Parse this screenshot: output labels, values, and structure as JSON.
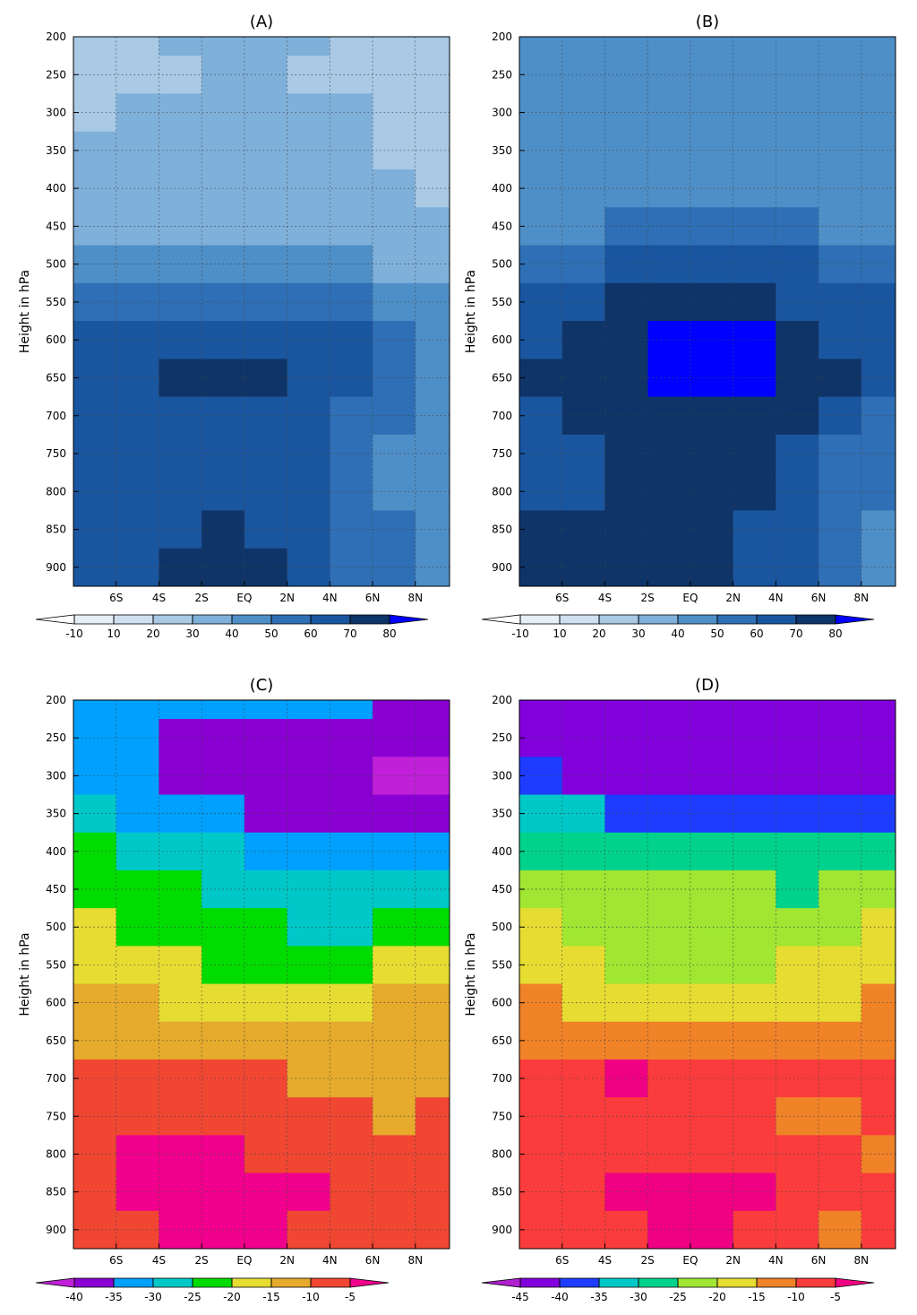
{
  "chart_data": [
    {
      "type": "contour",
      "title": "(A)",
      "ylabel": "Height in hPa",
      "x": [
        -7,
        -5,
        -3,
        -1,
        1,
        3,
        5,
        7,
        9
      ],
      "y": [
        200,
        250,
        300,
        350,
        400,
        450,
        500,
        550,
        600,
        650,
        700,
        750,
        800,
        850,
        900
      ],
      "z": [
        [
          25,
          25,
          35,
          35,
          35,
          35,
          25,
          25,
          25
        ],
        [
          25,
          25,
          28,
          35,
          35,
          28,
          25,
          25,
          25
        ],
        [
          28,
          32,
          35,
          35,
          35,
          35,
          32,
          25,
          25
        ],
        [
          32,
          35,
          35,
          35,
          35,
          35,
          35,
          28,
          25
        ],
        [
          35,
          35,
          35,
          35,
          35,
          35,
          35,
          32,
          28
        ],
        [
          38,
          38,
          38,
          38,
          38,
          38,
          38,
          35,
          35
        ],
        [
          45,
          45,
          42,
          42,
          42,
          42,
          42,
          38,
          38
        ],
        [
          55,
          52,
          52,
          52,
          55,
          52,
          52,
          45,
          42
        ],
        [
          62,
          62,
          65,
          68,
          65,
          62,
          62,
          55,
          48
        ],
        [
          62,
          65,
          72,
          75,
          72,
          62,
          62,
          55,
          48
        ],
        [
          62,
          62,
          65,
          68,
          62,
          62,
          58,
          52,
          48
        ],
        [
          62,
          62,
          62,
          62,
          62,
          62,
          55,
          48,
          45
        ],
        [
          62,
          62,
          62,
          62,
          62,
          62,
          55,
          48,
          42
        ],
        [
          62,
          62,
          68,
          72,
          68,
          62,
          58,
          52,
          42
        ],
        [
          62,
          62,
          72,
          75,
          70,
          62,
          58,
          52,
          42
        ]
      ],
      "xlim": [
        -8,
        9.6
      ],
      "ylim": [
        925,
        200
      ],
      "xticks": [
        {
          "value": -6,
          "label": "6S"
        },
        {
          "value": -4,
          "label": "4S"
        },
        {
          "value": -2,
          "label": "2S"
        },
        {
          "value": 0,
          "label": "EQ"
        },
        {
          "value": 2,
          "label": "2N"
        },
        {
          "value": 4,
          "label": "4N"
        },
        {
          "value": 6,
          "label": "6N"
        },
        {
          "value": 8,
          "label": "8N"
        }
      ],
      "yticks": [
        200,
        250,
        300,
        350,
        400,
        450,
        500,
        550,
        600,
        650,
        700,
        750,
        800,
        850,
        900
      ],
      "levels": [
        -10,
        10,
        20,
        30,
        40,
        50,
        60,
        70,
        80
      ],
      "colors": [
        "#ffffff",
        "#e6eff8",
        "#cfe0f0",
        "#a9c9e5",
        "#7fb0da",
        "#4f8fc7",
        "#2f6fb5",
        "#1a56a0",
        "#0e3468",
        "#0000ff"
      ],
      "grid": true
    },
    {
      "type": "contour",
      "title": "(B)",
      "ylabel": "Height in hPa",
      "x": [
        -7,
        -5,
        -3,
        -1,
        1,
        3,
        5,
        7,
        9
      ],
      "y": [
        200,
        250,
        300,
        350,
        400,
        450,
        500,
        550,
        600,
        650,
        700,
        750,
        800,
        850,
        900
      ],
      "z": [
        [
          45,
          45,
          45,
          45,
          45,
          45,
          45,
          45,
          45
        ],
        [
          45,
          45,
          45,
          45,
          45,
          45,
          45,
          45,
          45
        ],
        [
          45,
          45,
          45,
          45,
          45,
          45,
          45,
          45,
          45
        ],
        [
          45,
          45,
          45,
          45,
          45,
          45,
          45,
          45,
          45
        ],
        [
          45,
          45,
          45,
          45,
          45,
          45,
          45,
          45,
          45
        ],
        [
          45,
          48,
          52,
          52,
          52,
          52,
          52,
          48,
          45
        ],
        [
          55,
          58,
          62,
          62,
          62,
          62,
          62,
          58,
          55
        ],
        [
          62,
          65,
          72,
          72,
          72,
          72,
          68,
          65,
          62
        ],
        [
          65,
          72,
          75,
          85,
          85,
          82,
          75,
          68,
          62
        ],
        [
          72,
          75,
          78,
          85,
          85,
          82,
          75,
          72,
          62
        ],
        [
          68,
          72,
          75,
          75,
          75,
          75,
          75,
          65,
          58
        ],
        [
          62,
          65,
          72,
          75,
          75,
          72,
          65,
          58,
          55
        ],
        [
          62,
          65,
          72,
          75,
          75,
          72,
          62,
          58,
          52
        ],
        [
          72,
          72,
          75,
          75,
          75,
          68,
          62,
          55,
          48
        ],
        [
          72,
          75,
          75,
          75,
          75,
          65,
          62,
          55,
          45
        ]
      ],
      "xlim": [
        -8,
        9.6
      ],
      "ylim": [
        925,
        200
      ],
      "xticks": [
        {
          "value": -6,
          "label": "6S"
        },
        {
          "value": -4,
          "label": "4S"
        },
        {
          "value": -2,
          "label": "2S"
        },
        {
          "value": 0,
          "label": "EQ"
        },
        {
          "value": 2,
          "label": "2N"
        },
        {
          "value": 4,
          "label": "4N"
        },
        {
          "value": 6,
          "label": "6N"
        },
        {
          "value": 8,
          "label": "8N"
        }
      ],
      "yticks": [
        200,
        250,
        300,
        350,
        400,
        450,
        500,
        550,
        600,
        650,
        700,
        750,
        800,
        850,
        900
      ],
      "levels": [
        -10,
        10,
        20,
        30,
        40,
        50,
        60,
        70,
        80
      ],
      "colors": [
        "#ffffff",
        "#e6eff8",
        "#cfe0f0",
        "#a9c9e5",
        "#7fb0da",
        "#4f8fc7",
        "#2f6fb5",
        "#1a56a0",
        "#0e3468",
        "#0000ff"
      ],
      "grid": true
    },
    {
      "type": "contour",
      "title": "(C)",
      "ylabel": "Height in hPa",
      "x": [
        -7,
        -5,
        -3,
        -1,
        1,
        3,
        5,
        7,
        9
      ],
      "y": [
        200,
        250,
        300,
        350,
        400,
        450,
        500,
        550,
        600,
        650,
        700,
        750,
        800,
        850,
        900
      ],
      "z": [
        [
          -32,
          -32,
          -32,
          -32,
          -32,
          -32,
          -32,
          -37,
          -37
        ],
        [
          -32,
          -32,
          -37,
          -37,
          -37,
          -37,
          -37,
          -37,
          -37
        ],
        [
          -32,
          -33,
          -37,
          -37,
          -37,
          -37,
          -37,
          -42,
          -42
        ],
        [
          -28,
          -32,
          -32,
          -32,
          -37,
          -37,
          -37,
          -37,
          -37
        ],
        [
          -22,
          -27,
          -27,
          -28,
          -32,
          -32,
          -32,
          -32,
          -32
        ],
        [
          -22,
          -22,
          -22,
          -27,
          -27,
          -27,
          -27,
          -27,
          -27
        ],
        [
          -18,
          -22,
          -22,
          -22,
          -22,
          -27,
          -27,
          -22,
          -22
        ],
        [
          -17,
          -17,
          -18,
          -22,
          -22,
          -22,
          -22,
          -18,
          -17
        ],
        [
          -13,
          -13,
          -17,
          -17,
          -17,
          -17,
          -17,
          -13,
          -13
        ],
        [
          -12,
          -12,
          -12,
          -12,
          -13,
          -13,
          -13,
          -12,
          -12
        ],
        [
          -8,
          -8,
          -8,
          -8,
          -9,
          -12,
          -12,
          -12,
          -12
        ],
        [
          -7,
          -7,
          -7,
          -7,
          -7,
          -7,
          -8,
          -12,
          -10
        ],
        [
          -7,
          -4,
          -4,
          -4,
          -7,
          -7,
          -7,
          -7,
          -7
        ],
        [
          -7,
          -4,
          -3,
          -3,
          -3,
          -4,
          -7,
          -7,
          -7
        ],
        [
          -7,
          -7,
          -3,
          -3,
          -3,
          -7,
          -7,
          -7,
          -7
        ]
      ],
      "xlim": [
        -8,
        9.6
      ],
      "ylim": [
        925,
        200
      ],
      "xticks": [
        {
          "value": -6,
          "label": "6S"
        },
        {
          "value": -4,
          "label": "4S"
        },
        {
          "value": -2,
          "label": "2S"
        },
        {
          "value": 0,
          "label": "EQ"
        },
        {
          "value": 2,
          "label": "2N"
        },
        {
          "value": 4,
          "label": "4N"
        },
        {
          "value": 6,
          "label": "6N"
        },
        {
          "value": 8,
          "label": "8N"
        }
      ],
      "yticks": [
        200,
        250,
        300,
        350,
        400,
        450,
        500,
        550,
        600,
        650,
        700,
        750,
        800,
        850,
        900
      ],
      "levels": [
        -40,
        -35,
        -30,
        -25,
        -20,
        -15,
        -10,
        -5
      ],
      "colors": [
        "#c020d8",
        "#8a00d2",
        "#00a0ff",
        "#00c8c8",
        "#00dc00",
        "#e6dc32",
        "#e6aa2d",
        "#f04632",
        "#f0008c"
      ],
      "grid": true
    },
    {
      "type": "contour",
      "title": "(D)",
      "ylabel": "Height in hPa",
      "x": [
        -7,
        -5,
        -3,
        -1,
        1,
        3,
        5,
        7,
        9
      ],
      "y": [
        200,
        250,
        300,
        350,
        400,
        450,
        500,
        550,
        600,
        650,
        700,
        750,
        800,
        850,
        900
      ],
      "z": [
        [
          -42,
          -42,
          -42,
          -42,
          -42,
          -42,
          -42,
          -42,
          -42
        ],
        [
          -42,
          -42,
          -42,
          -42,
          -42,
          -42,
          -42,
          -42,
          -42
        ],
        [
          -38,
          -42,
          -42,
          -43,
          -43,
          -43,
          -42,
          -42,
          -42
        ],
        [
          -33,
          -33,
          -37,
          -37,
          -38,
          -38,
          -37,
          -37,
          -37
        ],
        [
          -28,
          -28,
          -28,
          -28,
          -28,
          -28,
          -28,
          -28,
          -28
        ],
        [
          -22,
          -22,
          -22,
          -22,
          -22,
          -23,
          -28,
          -22,
          -22
        ],
        [
          -18,
          -22,
          -22,
          -22,
          -22,
          -22,
          -22,
          -22,
          -18
        ],
        [
          -17,
          -18,
          -22,
          -22,
          -22,
          -22,
          -18,
          -17,
          -17
        ],
        [
          -13,
          -17,
          -17,
          -17,
          -17,
          -17,
          -17,
          -17,
          -12
        ],
        [
          -12,
          -12,
          -12,
          -12,
          -12,
          -12,
          -12,
          -12,
          -12
        ],
        [
          -7,
          -7,
          -4,
          -7,
          -7,
          -7,
          -7,
          -7,
          -7
        ],
        [
          -7,
          -7,
          -7,
          -7,
          -7,
          -7,
          -12,
          -12,
          -7
        ],
        [
          -7,
          -7,
          -7,
          -7,
          -7,
          -7,
          -7,
          -7,
          -12
        ],
        [
          -7,
          -7,
          -4,
          -3,
          -3,
          -4,
          -7,
          -7,
          -7
        ],
        [
          -7,
          -7,
          -7,
          -3,
          -3,
          -7,
          -7,
          -12,
          -7
        ]
      ],
      "xlim": [
        -8,
        9.6
      ],
      "ylim": [
        925,
        200
      ],
      "xticks": [
        {
          "value": -6,
          "label": "6S"
        },
        {
          "value": -4,
          "label": "4S"
        },
        {
          "value": -2,
          "label": "2S"
        },
        {
          "value": 0,
          "label": "EQ"
        },
        {
          "value": 2,
          "label": "2N"
        },
        {
          "value": 4,
          "label": "4N"
        },
        {
          "value": 6,
          "label": "6N"
        },
        {
          "value": 8,
          "label": "8N"
        }
      ],
      "yticks": [
        200,
        250,
        300,
        350,
        400,
        450,
        500,
        550,
        600,
        650,
        700,
        750,
        800,
        850,
        900
      ],
      "levels": [
        -45,
        -40,
        -35,
        -30,
        -25,
        -20,
        -15,
        -10,
        -5
      ],
      "colors": [
        "#b020d0",
        "#8200dc",
        "#1e3cff",
        "#00c8c8",
        "#00d28c",
        "#a0e632",
        "#e6dc32",
        "#f08228",
        "#fa3c3c",
        "#f00082"
      ],
      "grid": true
    }
  ]
}
